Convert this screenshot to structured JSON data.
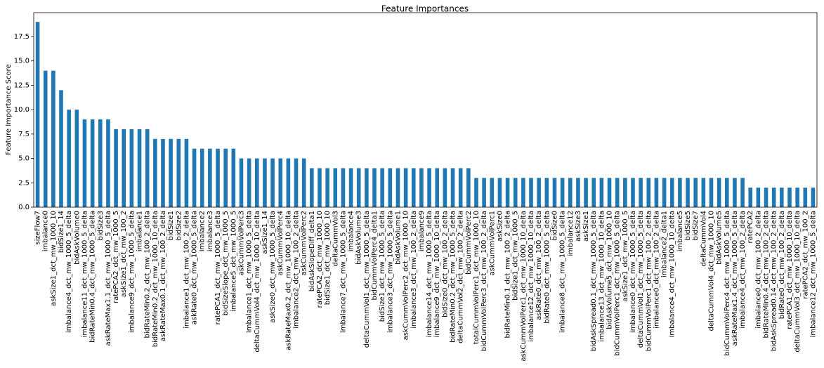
{
  "chart_data": {
    "type": "bar",
    "title": "Feature Importances",
    "y_label": "Feature Importance Score",
    "categories": [
      "sizeFlow7",
      "imbalance0",
      "askSize1_dct_mw_1000_10",
      "bidSize1_14",
      "imbalance4_dct_mw_1000_5_delta",
      "bidAskVolume0",
      "imbalance11_dct_mw_1000_5_delta",
      "bidRateMin0.4_dct_mw_1000_5_delta",
      "bidSize3",
      "askRateMax1.1_dct_mw_1000_5_delta",
      "ratePCA2_dct_mw_1000_5",
      "askSize1_dct_mw_100_2",
      "imbalance9_dct_mw_1000_5_delta",
      "imbalance1",
      "bidRateMin0.2_dct_mw_100_2_delta",
      "bidRateMin0.2_dct_mw_1000_10_delta",
      "askRateMax0.1_dct_mw_100_2_delta",
      "bidSize1",
      "bidSize2",
      "imbalance1_dct_mw_100_2_delta",
      "askRate0_dct_mw_1000_5_delta",
      "imbalance2",
      "imbalance3",
      "ratePCA1_dct_mw_1000_5_delta",
      "bidSizeSlope_dct_mw_1000_5",
      "imbalance5_dct_mw_1000_5",
      "askCummVolPerc3",
      "imbalance1_dct_mw_1000_5_delta",
      "deltaCummVol4_dct_mw_1000_10_delta",
      "askSize1_14",
      "askSize0_dct_mw_1000_5_delta",
      "askCummVolPerc4",
      "askRateMax0.2_dct_mw_1000_10_delta",
      "imbalance2_dct_mw_100_2_delta",
      "askCummVolPerc2",
      "bidAskSlopeDiff_delta1",
      "ratePCA2_dct_mw_1000_10",
      "bidSize1_dct_mw_1000_10",
      "deltaCummVol3",
      "imbalance7_dct_mw_1000_5_delta",
      "imbalance4",
      "bidAskVolume3",
      "deltaCummVol1_dct_mw_1000_5_delta",
      "bidCummVolPerc4_delta1",
      "bidSize1_dct_mw_1000_5_delta",
      "imbalance3_dct_mw_1000_5_delta",
      "bidAskVolume1",
      "askCummVolPerc2_dct_mw_1000_10",
      "imbalance3_dct_mw_100_2_delta",
      "imbalance9",
      "imbalance14_dct_mw_1000_5_delta",
      "imbalance9_dct_mw_1000_10_delta",
      "bidSize0_dct_mw_100_2_delta",
      "bidRateMin0.2_dct_mw_1000_5_delta",
      "deltaCummVol2_dct_mw_100_2_delta",
      "bidCummVolPerc2",
      "totalCummVolPerc1_dct_mw_1000_10",
      "bidCummVolPerc3_dct_mw_100_2_delta",
      "askCummVolPerc1",
      "askSize0",
      "bidRateMin0.1_dct_mw_100_2_delta",
      "bidSize1_dct_mw_1000_5",
      "askCummVolPerc1_dct_mw_1000_10_delta",
      "imbalance12_dct_mw_1000_10_delta",
      "askRate0_dct_mw_100_2_delta",
      "bidRate0_dct_mw_1000_5_delta",
      "bidSize0",
      "imbalance8_dct_mw_1000_5_delta",
      "imbalance12",
      "askSize3",
      "askSize1",
      "bidAskSpread0.1_dct_mw_1000_5_delta",
      "imbalance13_dct_mw_1000_10_delta",
      "bidAskVolume5_dct_mw_1000_10",
      "bidCummVolPerc1_dct_mw_1000_5_delta",
      "askSize1_dct_mw_1000_5",
      "imbalance0_dct_mw_1000_5_delta",
      "deltaCummVol1_dct_mw_1000_5_delta",
      "bidCummVolPerc1_dct_mw_100_2_delta",
      "imbalance0_dct_mw_100_2_delta",
      "imbalance2_delta1",
      "imbalance4_dct_mw_1000_10_delta",
      "imbalance5",
      "bidSize5",
      "bidSize7",
      "deltaCummVol4",
      "deltaCummVol4_dct_mw_1000_10",
      "bidAskVolume5",
      "bidCummVolPerc4_dct_mw_1000_5_delta",
      "askRateMax1.4_dct_mw_1000_5_delta",
      "imbalance4_dct_mw_100_2_delta",
      "ratePCA2",
      "imbalance0_dct_mw_100_2_delta",
      "bidRateMin0.4_dct_mw_100_2_delta",
      "bidAskSpread0.14_dct_mw_100_2_delta",
      "bidRate0_dct_mw_100_2_delta",
      "ratePCA1_dct_mw_1000_10_delta",
      "deltaCummVol3_dct_mw_1000_10_delta",
      "ratePCA2_dct_mw_100_2",
      "imbalance12_dct_mw_1000_5_delta"
    ],
    "values": [
      19,
      14,
      14,
      12,
      10,
      10,
      9,
      9,
      9,
      9,
      8,
      8,
      8,
      8,
      8,
      7,
      7,
      7,
      7,
      7,
      6,
      6,
      6,
      6,
      6,
      6,
      5,
      5,
      5,
      5,
      5,
      5,
      5,
      5,
      5,
      4,
      4,
      4,
      4,
      4,
      4,
      4,
      4,
      4,
      4,
      4,
      4,
      4,
      4,
      4,
      4,
      4,
      4,
      4,
      4,
      4,
      3,
      3,
      3,
      3,
      3,
      3,
      3,
      3,
      3,
      3,
      3,
      3,
      3,
      3,
      3,
      3,
      3,
      3,
      3,
      3,
      3,
      3,
      3,
      3,
      3,
      3,
      3,
      3,
      3,
      3,
      3,
      3,
      3,
      3,
      3,
      2,
      2,
      2,
      2,
      2,
      2,
      2,
      2,
      2
    ],
    "color": "#1f77b4",
    "ylim": [
      0,
      19.95
    ],
    "yticks": [
      {
        "value": 0,
        "label": "0.0"
      },
      2.5,
      {
        "value": 5,
        "label": "5.0"
      },
      7.5,
      {
        "value": 10,
        "label": "10.0"
      },
      12.5,
      {
        "value": 15,
        "label": "15.0"
      },
      17.5
    ]
  }
}
